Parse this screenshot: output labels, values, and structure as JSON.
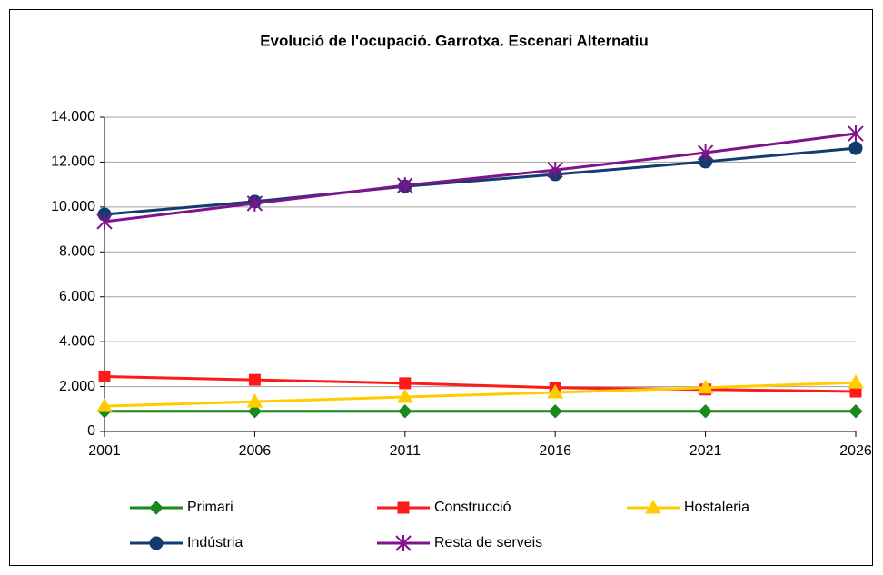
{
  "chart_data": {
    "type": "line",
    "title": "Evolució de l'ocupació. Garrotxa. Escenari Alternatiu",
    "x": [
      2001,
      2006,
      2011,
      2016,
      2021,
      2026
    ],
    "xlim": [
      2001,
      2026
    ],
    "xticks": [
      2001,
      2006,
      2011,
      2016,
      2021,
      2026
    ],
    "ylim": [
      0,
      14000
    ],
    "yticks": [
      0,
      {
        "value": 2000,
        "label": "2.000"
      },
      {
        "value": 4000,
        "label": "4.000"
      },
      {
        "value": 6000,
        "label": "6.000"
      },
      {
        "value": 8000,
        "label": "8.000"
      },
      {
        "value": 10000,
        "label": "10.000"
      },
      {
        "value": 12000,
        "label": "12.000"
      },
      {
        "value": 14000,
        "label": "14.000"
      }
    ],
    "grid": true,
    "legend": "bottom",
    "series": [
      {
        "name": "Primari",
        "color": "#1a8a1a",
        "marker": "diamond",
        "values": [
          900,
          900,
          900,
          900,
          900,
          900
        ]
      },
      {
        "name": "Construcció",
        "color": "#ff1a1a",
        "marker": "square",
        "values": [
          2450,
          2300,
          2150,
          1950,
          1870,
          1780
        ]
      },
      {
        "name": "Hostaleria",
        "color": "#ffcc00",
        "marker": "triangle",
        "values": [
          1130,
          1330,
          1540,
          1740,
          1950,
          2180
        ]
      },
      {
        "name": "Indústria",
        "color": "#123c6e",
        "marker": "circle",
        "values": [
          9670,
          10240,
          10920,
          11450,
          12020,
          12620
        ]
      },
      {
        "name": "Resta de serveis",
        "color": "#80138c",
        "marker": "star",
        "values": [
          9350,
          10160,
          10960,
          11650,
          12420,
          13270
        ]
      }
    ]
  }
}
